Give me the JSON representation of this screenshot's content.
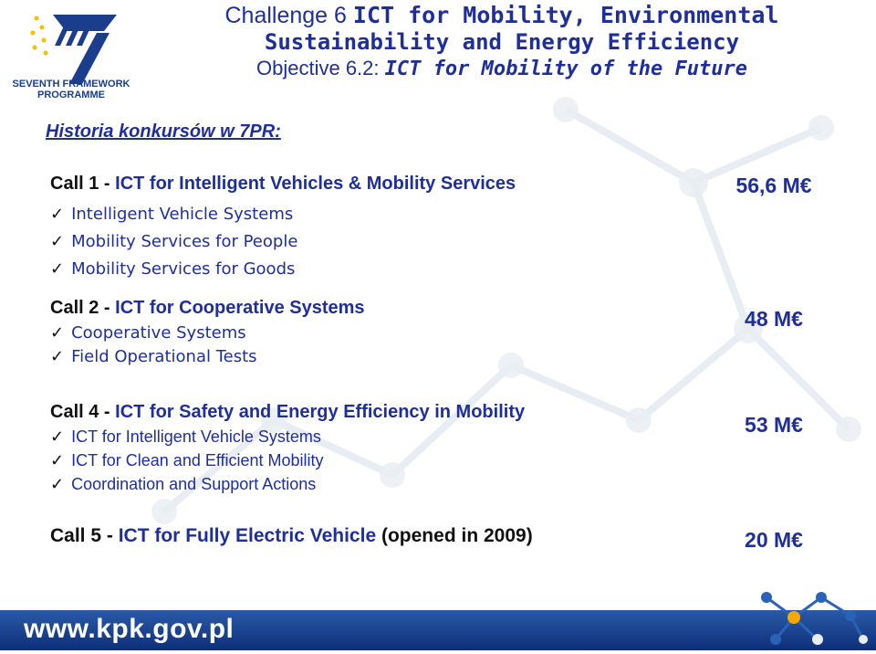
{
  "logo": {
    "line1": "SEVENTH FRAMEWORK",
    "line2": "PROGRAMME"
  },
  "title": {
    "line1_plain": "Challenge 6",
    "line1_bold": "ICT for Mobility, Environmental",
    "line2": "Sustainability and Energy Efficiency",
    "line3_plain": "Objective 6.2:",
    "line3_mono": "ICT for Mobility of the Future"
  },
  "section_heading": "Historia konkursów w 7PR:",
  "calls": [
    {
      "prefix": "Call 1 -",
      "name": "ICT for Intelligent Vehicles & Mobility Services",
      "amount": "56,6 M€",
      "items": [
        "Intelligent Vehicle Systems",
        "Mobility Services for People",
        "Mobility Services for Goods"
      ]
    },
    {
      "prefix": "Call 2 -",
      "name": "ICT for Cooperative Systems",
      "amount": "48 M€",
      "items": [
        "Cooperative Systems",
        "Field Operational Tests"
      ]
    },
    {
      "prefix": "Call 4 -",
      "name": "ICT for Safety and Energy Efficiency in Mobility",
      "amount": "53 M€",
      "items": [
        "ICT for Intelligent Vehicle Systems",
        "ICT for Clean and Efficient Mobility",
        "Coordination and Support Actions"
      ]
    },
    {
      "prefix": "Call 5 -",
      "name": "ICT for Fully Electric Vehicle",
      "suffix": "(opened in 2009)",
      "amount": "20 M€",
      "items": []
    }
  ],
  "check_glyph": "✓",
  "footer": {
    "url": "www.kpk.gov.pl"
  },
  "colors": {
    "text_blue": "#1e2f99",
    "band": "#1a4590"
  }
}
